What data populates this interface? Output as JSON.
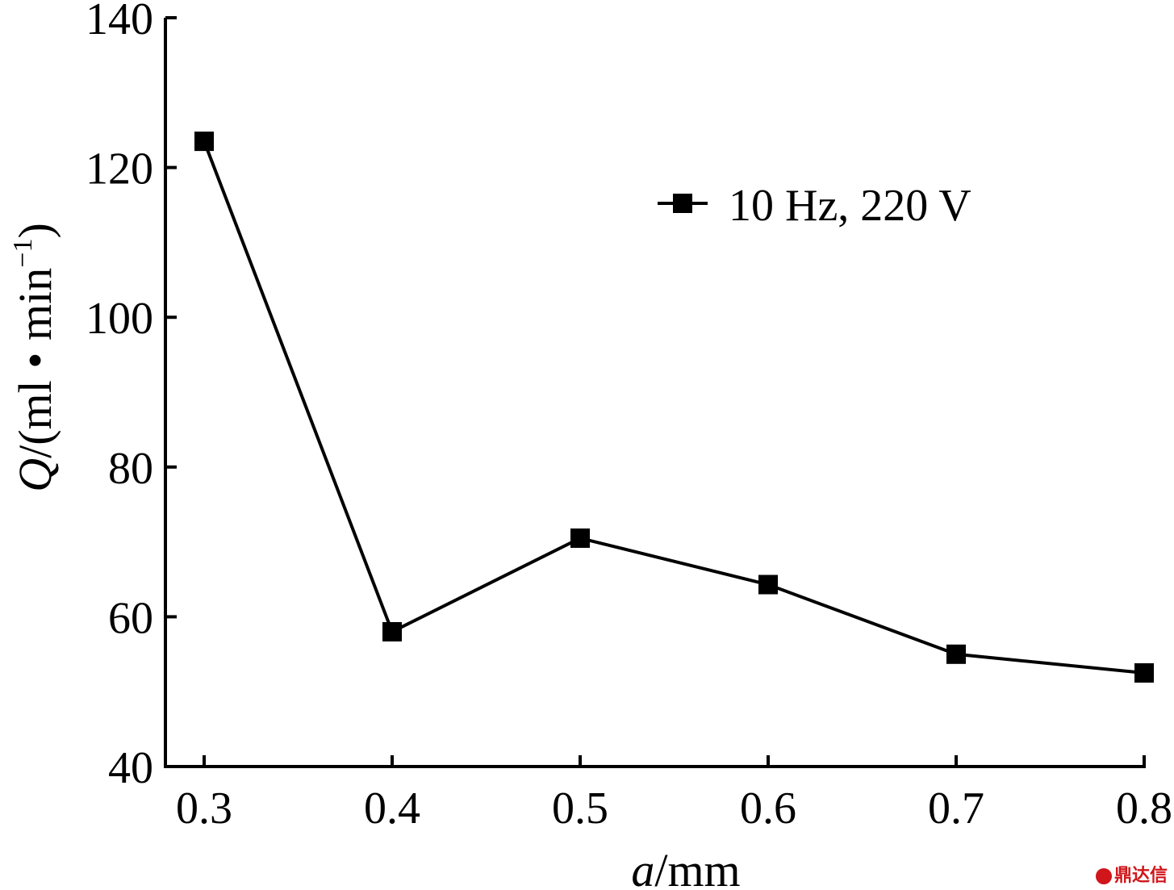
{
  "chart_data": {
    "type": "line",
    "x": [
      0.3,
      0.4,
      0.5,
      0.6,
      0.7,
      0.8
    ],
    "series": [
      {
        "name": "10 Hz, 220 V",
        "values": [
          123.5,
          58.0,
          70.5,
          64.3,
          55.0,
          52.5
        ],
        "marker": "square",
        "color": "#000000"
      }
    ],
    "x_ticks": [
      "0.3",
      "0.4",
      "0.5",
      "0.6",
      "0.7",
      "0.8"
    ],
    "y_ticks": [
      "40",
      "60",
      "80",
      "100",
      "120",
      "140"
    ],
    "xlim": [
      0.3,
      0.8
    ],
    "ylim": [
      40,
      140
    ],
    "xlabel_var": "a",
    "xlabel_unit": "/mm",
    "ylabel_var": "Q",
    "ylabel_unit": "/(ml • min",
    "ylabel_exp": "−1",
    "ylabel_close": ")",
    "grid": false,
    "legend_position": "top-right"
  },
  "watermark": "鼎达信"
}
